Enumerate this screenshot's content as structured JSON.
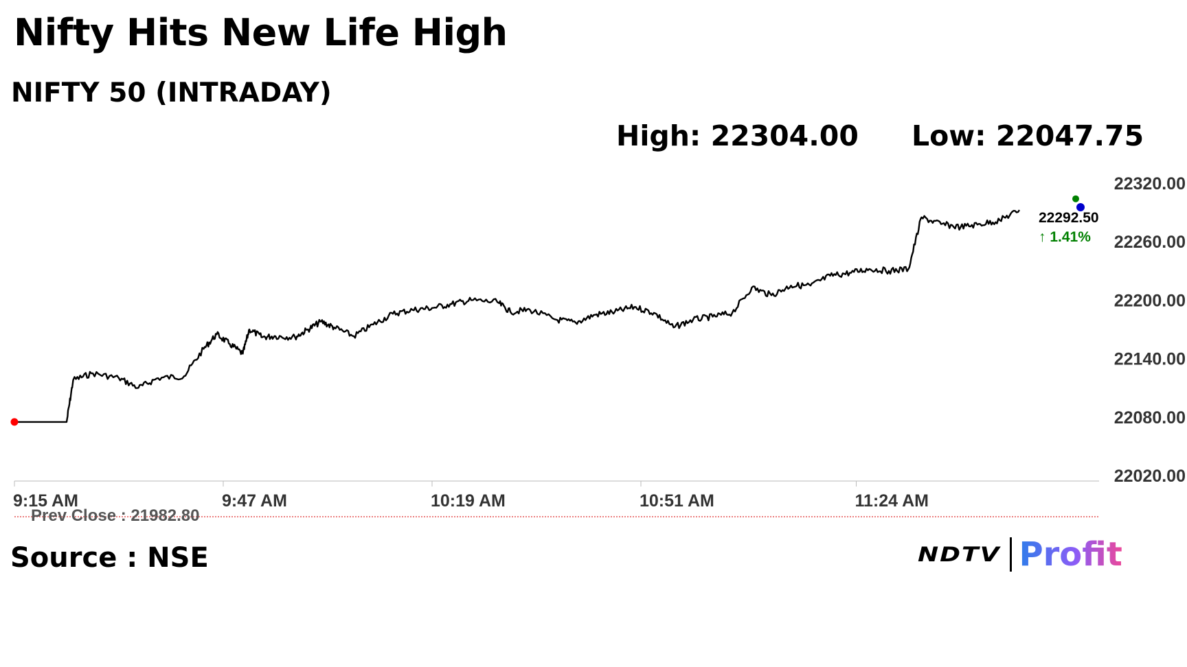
{
  "headline": "Nifty Hits New Life High",
  "subtitle": "NIFTY 50 (INTRADAY)",
  "stats": {
    "high": "High: 22304.00",
    "low": "Low: 22047.75"
  },
  "source": "Source : NSE",
  "logo": {
    "ndtv": "NDTV",
    "profit": "Profit",
    "colors": [
      "#2f7dea",
      "#8b5cf6",
      "#ec4899"
    ]
  },
  "chart_data": {
    "type": "line",
    "title": "NIFTY 50 (INTRADAY)",
    "x_unit": "time of day",
    "x_ticks": [
      "9:15 AM",
      "9:47 AM",
      "10:19 AM",
      "10:51 AM",
      "11:24 AM"
    ],
    "y_ticks": [
      "22320.00",
      "22260.00",
      "22200.00",
      "22140.00",
      "22080.00",
      "22020.00"
    ],
    "ylim": [
      22020,
      22320
    ],
    "grid": false,
    "line_color": "#000000",
    "series": [
      {
        "name": "",
        "points": [
          [
            "9:15",
            22075
          ],
          [
            "9:23",
            22075
          ],
          [
            "9:24",
            22118
          ],
          [
            "9:27",
            22125
          ],
          [
            "9:31",
            22120
          ],
          [
            "9:34",
            22110
          ],
          [
            "9:37",
            22120
          ],
          [
            "9:41",
            22122
          ],
          [
            "9:44",
            22150
          ],
          [
            "9:46",
            22165
          ],
          [
            "9:48",
            22155
          ],
          [
            "9:50",
            22145
          ],
          [
            "9:51",
            22170
          ],
          [
            "9:53",
            22162
          ],
          [
            "9:55",
            22163
          ],
          [
            "9:58",
            22162
          ],
          [
            "10:00",
            22170
          ],
          [
            "10:02",
            22178
          ],
          [
            "10:04",
            22172
          ],
          [
            "10:07",
            22163
          ],
          [
            "10:10",
            22175
          ],
          [
            "10:13",
            22186
          ],
          [
            "10:16",
            22190
          ],
          [
            "10:19",
            22192
          ],
          [
            "10:22",
            22196
          ],
          [
            "10:25",
            22200
          ],
          [
            "10:29",
            22198
          ],
          [
            "10:31",
            22188
          ],
          [
            "10:34",
            22190
          ],
          [
            "10:38",
            22180
          ],
          [
            "10:41",
            22177
          ],
          [
            "10:44",
            22185
          ],
          [
            "10:47",
            22188
          ],
          [
            "10:50",
            22193
          ],
          [
            "10:53",
            22187
          ],
          [
            "10:56",
            22172
          ],
          [
            "10:59",
            22180
          ],
          [
            "11:02",
            22183
          ],
          [
            "11:05",
            22187
          ],
          [
            "11:08",
            22213
          ],
          [
            "11:11",
            22205
          ],
          [
            "11:14",
            22215
          ],
          [
            "11:17",
            22215
          ],
          [
            "11:20",
            22225
          ],
          [
            "11:23",
            22228
          ],
          [
            "11:26",
            22232
          ],
          [
            "11:29",
            22230
          ],
          [
            "11:32",
            22232
          ],
          [
            "11:34",
            22285
          ],
          [
            "11:37",
            22278
          ],
          [
            "11:40",
            22275
          ],
          [
            "11:43",
            22278
          ],
          [
            "11:46",
            22282
          ],
          [
            "11:49",
            22292.5
          ]
        ]
      }
    ],
    "last_value": "22292.50",
    "change": "↑ 1.41%",
    "change_color": "#008000",
    "prev_close_label": "Prev Close : 21982.80",
    "prev_close_color": "#e03030",
    "open_marker_color": "#ff0000",
    "high_marker_color": "#008000",
    "last_marker_color": "#0000cc"
  }
}
